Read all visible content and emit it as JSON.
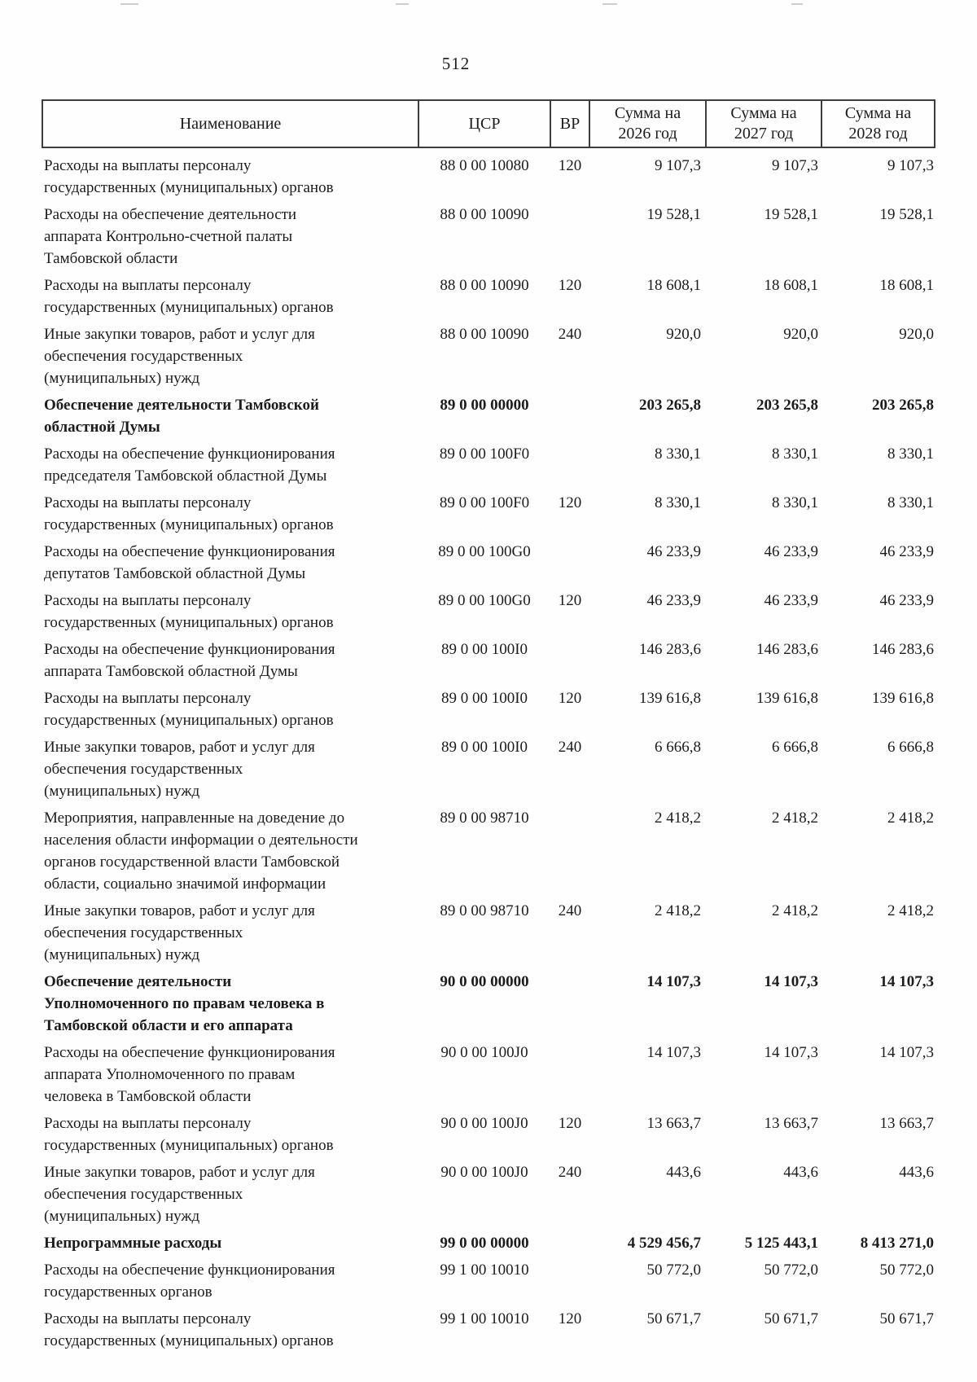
{
  "page": {
    "number": "512"
  },
  "table": {
    "headers": {
      "name": "Наименование",
      "csr": "ЦСР",
      "vr": "ВР",
      "sum2026": "Сумма на 2026 год",
      "sum2027": "Сумма на 2027 год",
      "sum2028": "Сумма на 2028 год"
    },
    "rows": [
      {
        "bold": false,
        "name": [
          "Расходы на выплаты персоналу",
          "государственных (муниципальных) органов"
        ],
        "csr": "88 0 00 10080",
        "vr": "120",
        "sum2026": "9 107,3",
        "sum2027": "9 107,3",
        "sum2028": "9 107,3"
      },
      {
        "bold": false,
        "name": [
          "Расходы на обеспечение деятельности",
          "аппарата Контрольно-счетной палаты",
          "Тамбовской области"
        ],
        "csr": "88 0 00 10090",
        "vr": "",
        "sum2026": "19 528,1",
        "sum2027": "19 528,1",
        "sum2028": "19 528,1"
      },
      {
        "bold": false,
        "name": [
          "Расходы на выплаты персоналу",
          "государственных (муниципальных) органов"
        ],
        "csr": "88 0 00 10090",
        "vr": "120",
        "sum2026": "18 608,1",
        "sum2027": "18 608,1",
        "sum2028": "18 608,1"
      },
      {
        "bold": false,
        "name": [
          "Иные закупки товаров, работ и услуг для",
          "обеспечения государственных",
          "(муниципальных) нужд"
        ],
        "csr": "88 0 00 10090",
        "vr": "240",
        "sum2026": "920,0",
        "sum2027": "920,0",
        "sum2028": "920,0"
      },
      {
        "bold": true,
        "name": [
          "Обеспечение деятельности Тамбовской",
          "областной Думы"
        ],
        "csr": "89 0 00 00000",
        "vr": "",
        "sum2026": "203 265,8",
        "sum2027": "203 265,8",
        "sum2028": "203 265,8"
      },
      {
        "bold": false,
        "name": [
          "Расходы на обеспечение функционирования",
          "председателя Тамбовской областной Думы"
        ],
        "csr": "89 0 00 100F0",
        "vr": "",
        "sum2026": "8 330,1",
        "sum2027": "8 330,1",
        "sum2028": "8 330,1"
      },
      {
        "bold": false,
        "name": [
          "Расходы на выплаты персоналу",
          "государственных (муниципальных) органов"
        ],
        "csr": "89 0 00 100F0",
        "vr": "120",
        "sum2026": "8 330,1",
        "sum2027": "8 330,1",
        "sum2028": "8 330,1"
      },
      {
        "bold": false,
        "name": [
          "Расходы на обеспечение функционирования",
          "депутатов Тамбовской областной Думы"
        ],
        "csr": "89 0 00 100G0",
        "vr": "",
        "sum2026": "46 233,9",
        "sum2027": "46 233,9",
        "sum2028": "46 233,9"
      },
      {
        "bold": false,
        "name": [
          "Расходы на выплаты персоналу",
          "государственных (муниципальных) органов"
        ],
        "csr": "89 0 00 100G0",
        "vr": "120",
        "sum2026": "46 233,9",
        "sum2027": "46 233,9",
        "sum2028": "46 233,9"
      },
      {
        "bold": false,
        "name": [
          "Расходы на обеспечение функционирования",
          "аппарата Тамбовской областной Думы"
        ],
        "csr": "89 0 00 100I0",
        "vr": "",
        "sum2026": "146 283,6",
        "sum2027": "146 283,6",
        "sum2028": "146 283,6"
      },
      {
        "bold": false,
        "name": [
          "Расходы на выплаты персоналу",
          "государственных (муниципальных) органов"
        ],
        "csr": "89 0 00 100I0",
        "vr": "120",
        "sum2026": "139 616,8",
        "sum2027": "139 616,8",
        "sum2028": "139 616,8"
      },
      {
        "bold": false,
        "name": [
          "Иные закупки товаров, работ и услуг для",
          "обеспечения государственных",
          "(муниципальных) нужд"
        ],
        "csr": "89 0 00 100I0",
        "vr": "240",
        "sum2026": "6 666,8",
        "sum2027": "6 666,8",
        "sum2028": "6 666,8"
      },
      {
        "bold": false,
        "name": [
          "Мероприятия, направленные на доведение до",
          "населения области информации о деятельности",
          "органов государственной власти Тамбовской",
          "области, социально значимой информации"
        ],
        "csr": "89 0 00 98710",
        "vr": "",
        "sum2026": "2 418,2",
        "sum2027": "2 418,2",
        "sum2028": "2 418,2"
      },
      {
        "bold": false,
        "name": [
          "Иные закупки товаров, работ и услуг для",
          "обеспечения государственных",
          "(муниципальных) нужд"
        ],
        "csr": "89 0 00 98710",
        "vr": "240",
        "sum2026": "2 418,2",
        "sum2027": "2 418,2",
        "sum2028": "2 418,2"
      },
      {
        "bold": true,
        "name": [
          "Обеспечение деятельности",
          "Уполномоченного по правам человека в",
          "Тамбовской области и его аппарата"
        ],
        "csr": "90 0 00 00000",
        "vr": "",
        "sum2026": "14 107,3",
        "sum2027": "14 107,3",
        "sum2028": "14 107,3"
      },
      {
        "bold": false,
        "name": [
          "Расходы на обеспечение функционирования",
          "аппарата Уполномоченного по правам",
          "человека в Тамбовской области"
        ],
        "csr": "90 0 00 100J0",
        "vr": "",
        "sum2026": "14 107,3",
        "sum2027": "14 107,3",
        "sum2028": "14 107,3"
      },
      {
        "bold": false,
        "name": [
          "Расходы на выплаты персоналу",
          "государственных (муниципальных) органов"
        ],
        "csr": "90 0 00 100J0",
        "vr": "120",
        "sum2026": "13 663,7",
        "sum2027": "13 663,7",
        "sum2028": "13 663,7"
      },
      {
        "bold": false,
        "name": [
          "Иные закупки товаров, работ и услуг для",
          "обеспечения государственных",
          "(муниципальных) нужд"
        ],
        "csr": "90 0 00 100J0",
        "vr": "240",
        "sum2026": "443,6",
        "sum2027": "443,6",
        "sum2028": "443,6"
      },
      {
        "bold": true,
        "name": [
          "Непрограммные расходы"
        ],
        "csr": "99 0 00 00000",
        "vr": "",
        "sum2026": "4 529 456,7",
        "sum2027": "5 125 443,1",
        "sum2028": "8 413 271,0"
      },
      {
        "bold": false,
        "name": [
          "Расходы на обеспечение функционирования",
          "государственных органов"
        ],
        "csr": "99 1 00 10010",
        "vr": "",
        "sum2026": "50 772,0",
        "sum2027": "50 772,0",
        "sum2028": "50 772,0"
      },
      {
        "bold": false,
        "name": [
          "Расходы на выплаты персоналу",
          "государственных (муниципальных) органов"
        ],
        "csr": "99 1 00 10010",
        "vr": "120",
        "sum2026": "50 671,7",
        "sum2027": "50 671,7",
        "sum2028": "50 671,7"
      }
    ]
  }
}
